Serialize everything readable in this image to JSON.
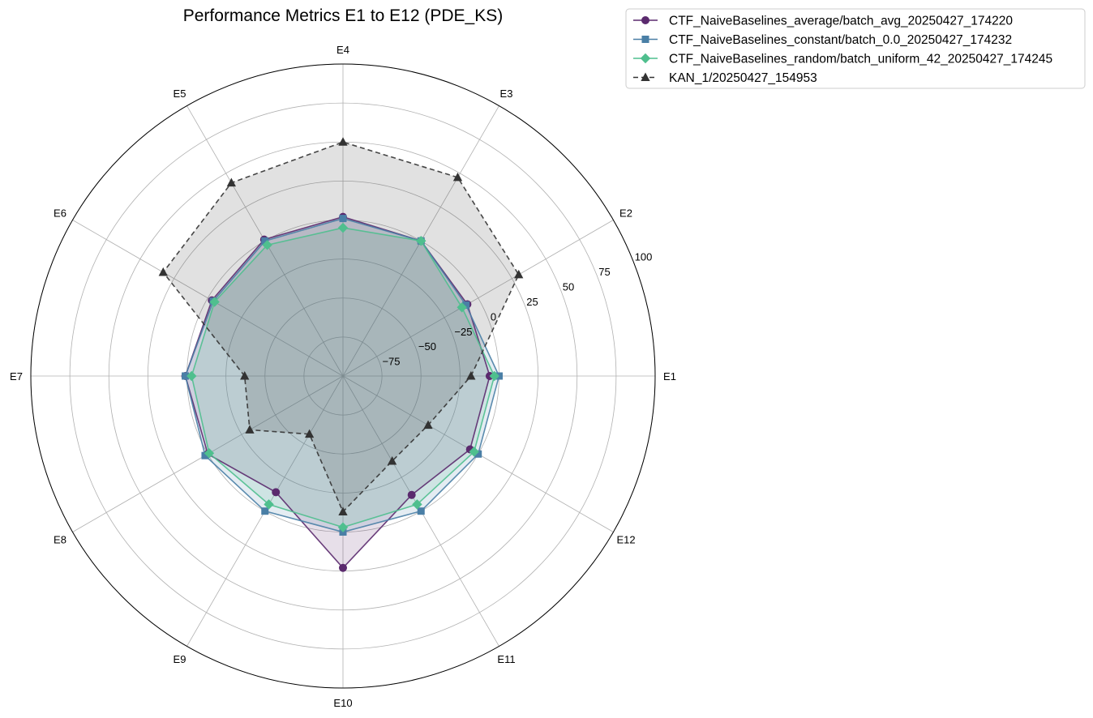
{
  "chart_data": {
    "type": "radar",
    "title": "Performance Metrics E1 to E12 (PDE_KS)",
    "categories": [
      "E1",
      "E2",
      "E3",
      "E4",
      "E5",
      "E6",
      "E7",
      "E8",
      "E9",
      "E10",
      "E11",
      "E12"
    ],
    "r_ticks": [
      "−75",
      "−50",
      "−25",
      "0",
      "25",
      "50",
      "75",
      "100"
    ],
    "r_tick_values": [
      -75,
      -50,
      -25,
      0,
      25,
      50,
      75,
      100
    ],
    "rlim": [
      -100,
      100
    ],
    "grid": true,
    "legend_position": "upper right, outside plot",
    "series": [
      {
        "name": "CTF_NaiveBaselines_average/batch_avg_20250427_174220",
        "color": "#5b2a6e",
        "marker": "circle",
        "linestyle": "solid",
        "values": [
          -6,
          -8,
          0,
          2,
          1,
          -3,
          1,
          0,
          -14,
          23,
          -12,
          -6
        ]
      },
      {
        "name": "CTF_NaiveBaselines_constant/batch_0.0_20250427_174232",
        "color": "#4a7fa6",
        "marker": "square",
        "linestyle": "solid",
        "values": [
          0,
          -9,
          0,
          1,
          0,
          -4,
          1,
          2,
          0,
          0,
          0,
          0
        ]
      },
      {
        "name": "CTF_NaiveBaselines_random/batch_uniform_42_20250427_174245",
        "color": "#4fbf8e",
        "marker": "diamond",
        "linestyle": "solid",
        "values": [
          -3,
          -12,
          0,
          -5,
          -3,
          -5,
          -3,
          -1,
          -5,
          -3,
          -5,
          -3
        ]
      },
      {
        "name": "KAN_1/20250427_154953",
        "color": "#333333",
        "marker": "triangle",
        "linestyle": "dashed",
        "values": [
          -18,
          30,
          47,
          50,
          43,
          33,
          -37,
          -31,
          -57,
          -13,
          -37,
          -37
        ]
      }
    ]
  }
}
